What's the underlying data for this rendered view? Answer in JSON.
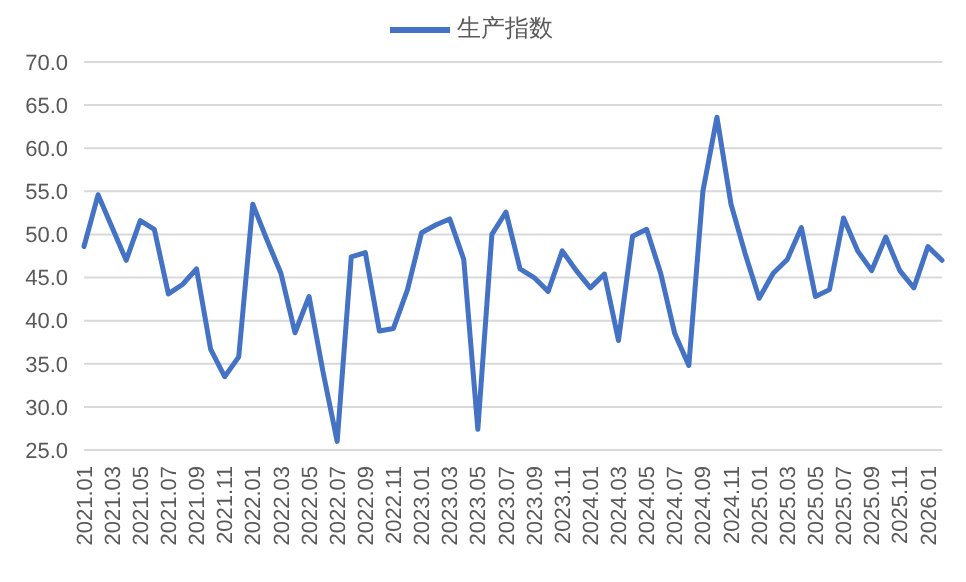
{
  "chart_data": {
    "type": "line",
    "categories": [
      "2021.01",
      null,
      "2021.03",
      null,
      "2021.05",
      null,
      "2021.07",
      null,
      "2021.09",
      null,
      "2021.11",
      null,
      "2022.01",
      null,
      "2022.03",
      null,
      "2022.05",
      null,
      "2022.07",
      null,
      "2022.09",
      null,
      "2022.11",
      null,
      "2023.01",
      null,
      "2023.03",
      null,
      "2023.05",
      null,
      "2023.07",
      null,
      "2023.09",
      null,
      "2023.11",
      null,
      "2024.01",
      null,
      "2024.03",
      null,
      "2024.05",
      null,
      "2024.07",
      null,
      "2024.09",
      null,
      "2024.11",
      null,
      "2025.01",
      null,
      "2025.03",
      null,
      "2025.05",
      null,
      "2025.07",
      null,
      "2025.09",
      null,
      "2025.11",
      null,
      "2026.01",
      null
    ],
    "series": [
      {
        "name": "生产指数",
        "color": "#4472c4",
        "values": [
          48.6,
          54.6,
          50.8,
          47.0,
          51.6,
          50.6,
          43.1,
          44.2,
          46.0,
          36.7,
          33.5,
          35.8,
          53.5,
          49.4,
          45.5,
          38.6,
          42.8,
          34.0,
          26.0,
          47.4,
          47.9,
          38.8,
          39.1,
          43.6,
          50.2,
          51.1,
          51.8,
          47.1,
          27.4,
          50.0,
          52.6,
          46.0,
          45.0,
          43.4,
          48.1,
          45.8,
          43.8,
          45.4,
          37.7,
          49.8,
          50.6,
          45.5,
          38.5,
          34.8,
          55.0,
          63.6,
          53.5,
          47.8,
          42.6,
          45.5,
          47.1,
          50.8,
          42.8,
          43.6,
          51.9,
          48.1,
          45.8,
          49.7,
          45.8,
          43.8,
          48.6,
          47.0
        ]
      }
    ],
    "ylim": [
      25,
      70
    ],
    "yticks": [
      {
        "value": 25,
        "label": "25.0"
      },
      {
        "value": 30,
        "label": "30.0"
      },
      {
        "value": 35,
        "label": "35.0"
      },
      {
        "value": 40,
        "label": "40.0"
      },
      {
        "value": 45,
        "label": "45.0"
      },
      {
        "value": 50,
        "label": "50.0"
      },
      {
        "value": 55,
        "label": "55.0"
      },
      {
        "value": 60,
        "label": "60.0"
      },
      {
        "value": 65,
        "label": "65.0"
      },
      {
        "value": 70,
        "label": "70.0"
      }
    ],
    "grid": "y",
    "legend": "top",
    "marker": "none",
    "line_style": "solid"
  }
}
